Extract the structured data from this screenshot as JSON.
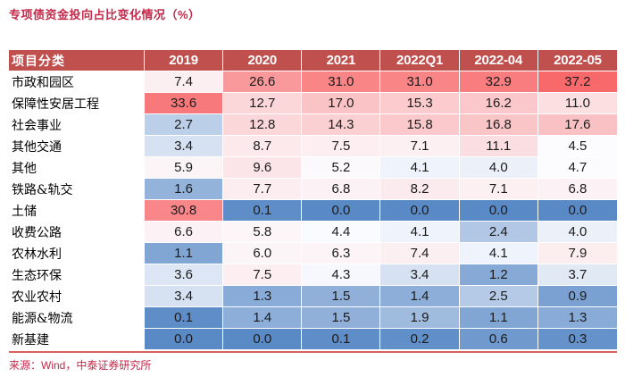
{
  "page": {
    "title": "专项债资金投向占比变化情况（%）",
    "source": "来源：Wind，中泰证券研究所"
  },
  "colors": {
    "accent": "#c2294a",
    "header_bg": "#c0504e",
    "header_text": "#ffffff",
    "bottom_rule": "#d4625f",
    "scale_min": "#5A8AC6",
    "scale_mid": "#FCFCFF",
    "scale_max": "#F8696B"
  },
  "chart_data": {
    "type": "heatmap",
    "title": "专项债资金投向占比变化情况（%）",
    "columns": [
      "项目分类",
      "2019",
      "2020",
      "2021",
      "2022Q1",
      "2022-04",
      "2022-05"
    ],
    "rows": [
      {
        "label": "市政和园区",
        "values": [
          "7.4",
          "26.6",
          "31.0",
          "31.0",
          "32.9",
          "37.2"
        ]
      },
      {
        "label": "保障性安居工程",
        "values": [
          "33.6",
          "12.7",
          "17.0",
          "15.3",
          "16.2",
          "11.0"
        ]
      },
      {
        "label": "社会事业",
        "values": [
          "2.7",
          "12.8",
          "14.3",
          "15.8",
          "16.8",
          "17.6"
        ]
      },
      {
        "label": "其他交通",
        "values": [
          "3.4",
          "8.7",
          "7.5",
          "7.1",
          "11.1",
          "4.5"
        ]
      },
      {
        "label": "其他",
        "values": [
          "5.9",
          "9.6",
          "5.2",
          "4.1",
          "4.0",
          "4.7"
        ]
      },
      {
        "label": "铁路&轨交",
        "values": [
          "1.6",
          "7.7",
          "6.8",
          "8.2",
          "7.1",
          "6.8"
        ]
      },
      {
        "label": "土储",
        "values": [
          "30.8",
          "0.1",
          "0.0",
          "0.0",
          "0.0",
          "0.0"
        ]
      },
      {
        "label": "收费公路",
        "values": [
          "6.6",
          "5.8",
          "4.4",
          "4.1",
          "2.4",
          "4.0"
        ]
      },
      {
        "label": "农林水利",
        "values": [
          "1.1",
          "6.0",
          "6.3",
          "7.4",
          "4.1",
          "7.9"
        ]
      },
      {
        "label": "生态环保",
        "values": [
          "3.6",
          "7.5",
          "4.3",
          "3.4",
          "1.2",
          "3.7"
        ]
      },
      {
        "label": "农业农村",
        "values": [
          "3.4",
          "1.3",
          "1.5",
          "1.4",
          "2.5",
          "0.9"
        ]
      },
      {
        "label": "能源&物流",
        "values": [
          "0.1",
          "1.4",
          "1.5",
          "1.9",
          "1.1",
          "1.3"
        ]
      },
      {
        "label": "新基建",
        "values": [
          "0.0",
          "0.0",
          "0.1",
          "0.2",
          "0.6",
          "0.3"
        ]
      }
    ],
    "color_scale": {
      "min_value": 0.0,
      "mid_value": 4.45,
      "max_value": 37.2,
      "min_color": "#5A8AC6",
      "mid_color": "#FCFCFF",
      "max_color": "#F8696B",
      "note": "3-color scale: low=blue, median=white, high=red"
    },
    "legend_position": "none",
    "grid": false
  }
}
